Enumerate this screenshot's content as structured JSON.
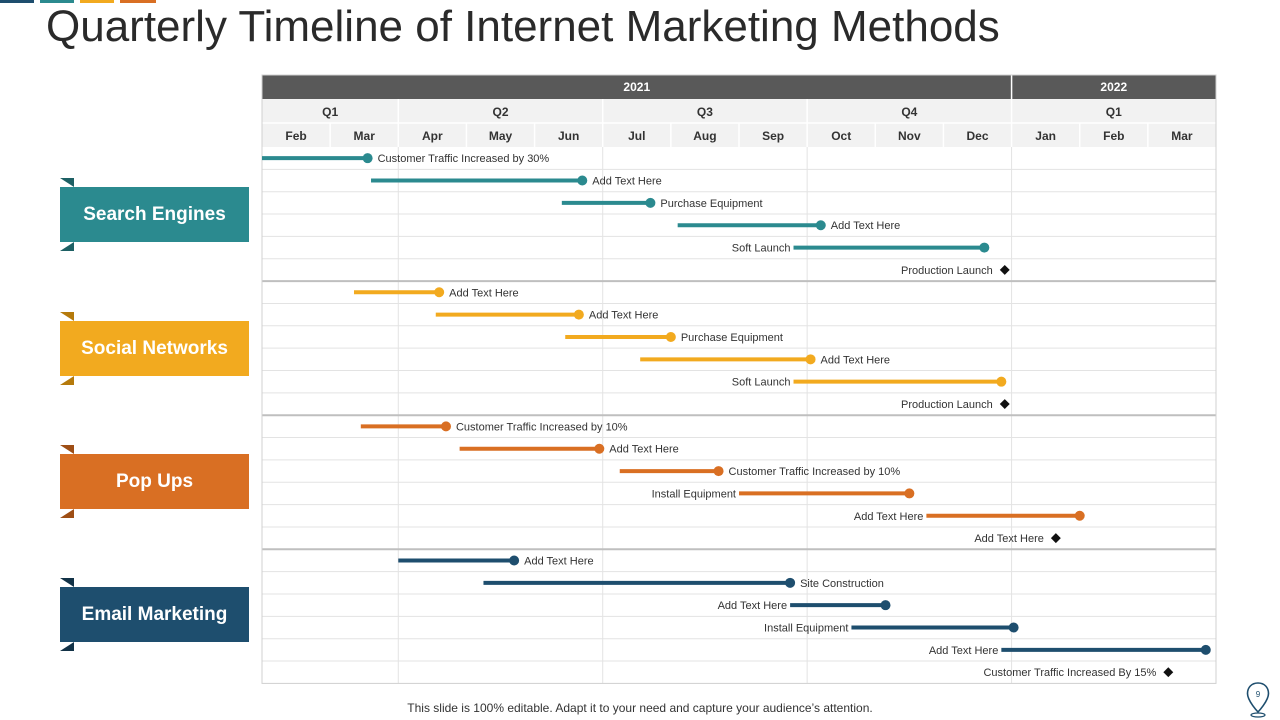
{
  "title": "Quarterly Timeline of Internet Marketing Methods",
  "footer": "This slide is 100% editable. Adapt it to your need and capture your audience’s attention.",
  "page_number": "9",
  "colors": {
    "teal": "#2B8A8F",
    "gold": "#F2AA1F",
    "orange": "#D96F23",
    "navy": "#1E4E6E",
    "header_dark": "#595959",
    "header_light": "#F2F2F2",
    "grid": "#E3E3E3",
    "divider": "#BFBFBF"
  },
  "timeline": {
    "years": [
      {
        "label": "2021",
        "start": 0,
        "span": 11
      },
      {
        "label": "2022",
        "start": 11,
        "span": 3
      }
    ],
    "quarters": [
      {
        "label": "Q1",
        "start": 0,
        "span": 2
      },
      {
        "label": "Q2",
        "start": 2,
        "span": 3
      },
      {
        "label": "Q3",
        "start": 5,
        "span": 3
      },
      {
        "label": "Q4",
        "start": 8,
        "span": 3
      },
      {
        "label": "Q1",
        "start": 11,
        "span": 3
      }
    ],
    "months": [
      "Feb",
      "Mar",
      "Apr",
      "May",
      "Jun",
      "Jul",
      "Aug",
      "Sep",
      "Oct",
      "Nov",
      "Dec",
      "Jan",
      "Feb",
      "Mar"
    ]
  },
  "categories": [
    {
      "name": "Search Engines",
      "color": "#2B8A8F",
      "tasks": [
        {
          "start": 0.0,
          "end": 1.55,
          "label": "Customer Traffic Increased by 30%",
          "label_side": "right"
        },
        {
          "start": 1.6,
          "end": 4.7,
          "label": "Add Text Here",
          "label_side": "right"
        },
        {
          "start": 4.4,
          "end": 5.7,
          "label": "Purchase Equipment",
          "label_side": "right"
        },
        {
          "start": 6.1,
          "end": 8.2,
          "label": "Add Text Here",
          "label_side": "right"
        },
        {
          "start": 7.8,
          "end": 10.6,
          "label": "Soft Launch",
          "label_side": "left"
        },
        {
          "milestone": 10.9,
          "label": "Production Launch",
          "label_side": "left"
        }
      ]
    },
    {
      "name": "Social Networks",
      "color": "#F2AA1F",
      "tasks": [
        {
          "start": 1.35,
          "end": 2.6,
          "label": "Add Text Here",
          "label_side": "right"
        },
        {
          "start": 2.55,
          "end": 4.65,
          "label": "Add Text Here",
          "label_side": "right"
        },
        {
          "start": 4.45,
          "end": 6.0,
          "label": "Purchase Equipment",
          "label_side": "right"
        },
        {
          "start": 5.55,
          "end": 8.05,
          "label": "Add Text Here",
          "label_side": "right"
        },
        {
          "start": 7.8,
          "end": 10.85,
          "label": "Soft Launch",
          "label_side": "left"
        },
        {
          "milestone": 10.9,
          "label": "Production Launch",
          "label_side": "left"
        }
      ]
    },
    {
      "name": "Pop Ups",
      "color": "#D96F23",
      "tasks": [
        {
          "start": 1.45,
          "end": 2.7,
          "label": "Customer Traffic Increased by 10%",
          "label_side": "right"
        },
        {
          "start": 2.9,
          "end": 4.95,
          "label": "Add Text Here",
          "label_side": "right"
        },
        {
          "start": 5.25,
          "end": 6.7,
          "label": "Customer Traffic Increased by 10%",
          "label_side": "right"
        },
        {
          "start": 7.0,
          "end": 9.5,
          "label": "Install Equipment",
          "label_side": "left"
        },
        {
          "start": 9.75,
          "end": 12.0,
          "label": "Add Text Here",
          "label_side": "left"
        },
        {
          "milestone": 11.65,
          "label": "Add Text Here",
          "label_side": "left"
        }
      ]
    },
    {
      "name": "Email Marketing",
      "color": "#1E4E6E",
      "tasks": [
        {
          "start": 2.0,
          "end": 3.7,
          "label": "Add Text Here",
          "label_side": "right"
        },
        {
          "start": 3.25,
          "end": 7.75,
          "label": "Site Construction",
          "label_side": "right"
        },
        {
          "start": 7.75,
          "end": 9.15,
          "label": "Add Text Here",
          "label_side": "left"
        },
        {
          "start": 8.65,
          "end": 11.03,
          "label": "Install Equipment",
          "label_side": "left"
        },
        {
          "start": 10.85,
          "end": 13.85,
          "label": "Add Text Here",
          "label_side": "left"
        },
        {
          "milestone": 13.3,
          "label": "Customer Traffic Increased By 15%",
          "label_side": "left"
        }
      ]
    }
  ]
}
